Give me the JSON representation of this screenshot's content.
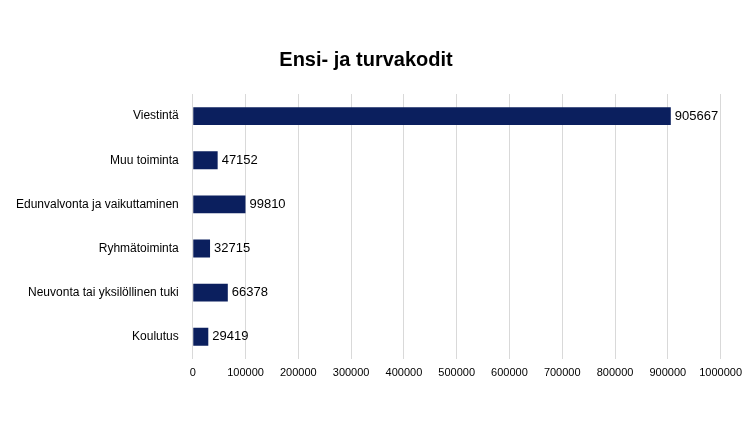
{
  "chart_data": {
    "type": "bar",
    "title": "Ensi- ja turvakodit",
    "orientation": "horizontal",
    "categories": [
      "Viestintä",
      "Muu toiminta",
      "Edunvalvonta ja vaikuttaminen",
      "Ryhmätoiminta",
      "Neuvonta tai yksilöllinen tuki",
      "Koulutus"
    ],
    "values": [
      905667,
      47152,
      99810,
      32715,
      66378,
      29419
    ],
    "color": "#0b1f5e",
    "xlim": [
      0,
      1000000
    ],
    "xticks": [
      0,
      100000,
      200000,
      300000,
      400000,
      500000,
      600000,
      700000,
      800000,
      900000,
      1000000
    ],
    "grid": true,
    "data_labels": true
  }
}
